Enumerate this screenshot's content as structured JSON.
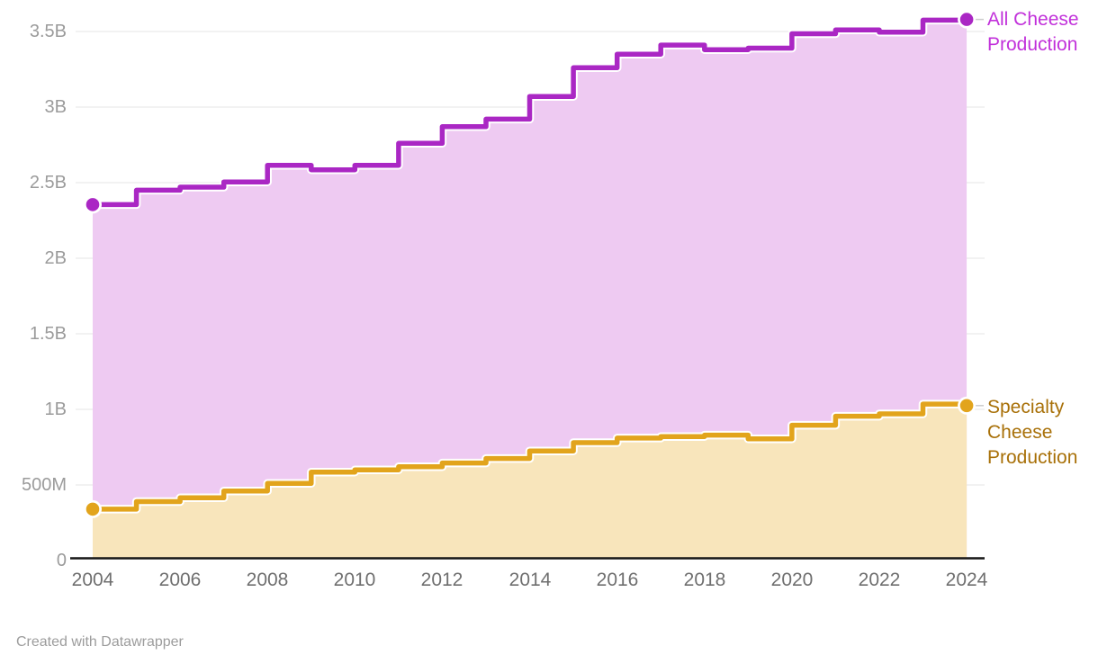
{
  "chart_data": {
    "type": "area",
    "interpolation": "step-after",
    "title": "",
    "values_unit": "millions",
    "x": [
      2004,
      2005,
      2006,
      2007,
      2008,
      2009,
      2010,
      2011,
      2012,
      2013,
      2014,
      2015,
      2016,
      2017,
      2018,
      2019,
      2020,
      2021,
      2022,
      2023,
      2024
    ],
    "series": [
      {
        "name": "All Cheese Production",
        "label_lines": [
          "All Cheese",
          "Production"
        ],
        "line_color": "#aa27c4",
        "fill_color": "#eecaf2",
        "label_color": "#c130da",
        "values": [
          2355,
          2450,
          2470,
          2505,
          2615,
          2585,
          2615,
          2760,
          2870,
          2920,
          3070,
          3260,
          3350,
          3410,
          3380,
          3390,
          3485,
          3510,
          3495,
          3575,
          3580
        ]
      },
      {
        "name": "Specialty Cheese Production",
        "label_lines": [
          "Specialty",
          "Cheese",
          "Production"
        ],
        "line_color": "#e2a41c",
        "fill_color": "#f8e5bb",
        "label_color": "#a87008",
        "values": [
          340,
          390,
          415,
          460,
          510,
          585,
          600,
          620,
          645,
          675,
          725,
          780,
          810,
          820,
          830,
          805,
          895,
          955,
          970,
          1035,
          1025
        ]
      }
    ],
    "y_ticks": [
      {
        "value": 0,
        "label": "0"
      },
      {
        "value": 500,
        "label": "500M"
      },
      {
        "value": 1000,
        "label": "1B"
      },
      {
        "value": 1500,
        "label": "1.5B"
      },
      {
        "value": 2000,
        "label": "2B"
      },
      {
        "value": 2500,
        "label": "2.5B"
      },
      {
        "value": 3000,
        "label": "3B"
      },
      {
        "value": 3500,
        "label": "3.5B"
      }
    ],
    "x_ticks": [
      2004,
      2006,
      2008,
      2010,
      2012,
      2014,
      2016,
      2018,
      2020,
      2022,
      2024
    ],
    "ylim": [
      0,
      3500
    ],
    "grid": true,
    "legend_position": "right of line ends",
    "markers": "first and last point dots"
  },
  "colors": {
    "grid": "#e4e4e4",
    "axis": "#161616",
    "leader": "#cccccc",
    "y_tick_text": "#9b9b9b",
    "x_tick_text": "#6f6f6f",
    "footer_text": "#9c9c9c"
  },
  "footer": {
    "text": "Created with Datawrapper"
  }
}
